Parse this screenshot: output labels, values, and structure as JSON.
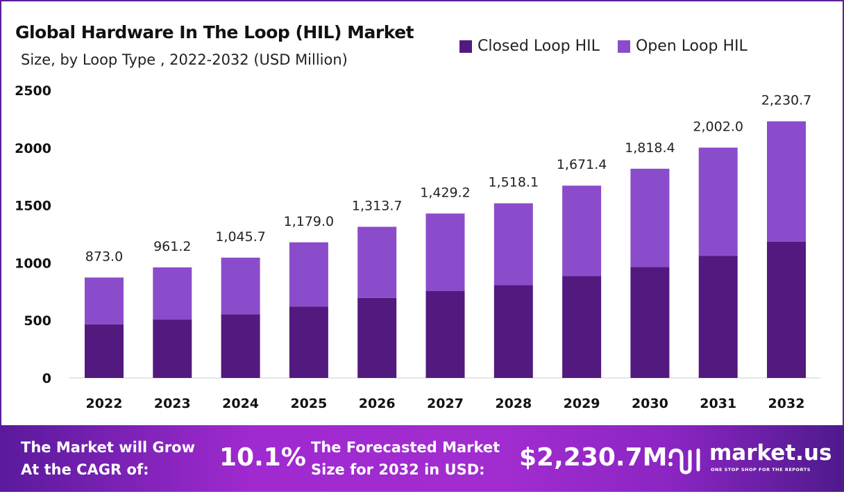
{
  "title": "Global Hardware In The Loop (HIL) Market",
  "subtitle": "Size, by Loop Type , 2022-2032 (USD Million)",
  "colors": {
    "closed": "#52197f",
    "open": "#8b4ccb",
    "border": "#5b1f9a"
  },
  "chart_data": {
    "type": "bar",
    "stacked": true,
    "title": "Global Hardware In The Loop (HIL) Market",
    "subtitle": "Size, by Loop Type , 2022-2032 (USD Million)",
    "categories": [
      "2022",
      "2023",
      "2024",
      "2025",
      "2026",
      "2027",
      "2028",
      "2029",
      "2030",
      "2031",
      "2032"
    ],
    "series": [
      {
        "name": "Closed Loop HIL",
        "values": [
          466,
          507,
          554,
          621,
          696,
          757,
          806,
          885,
          965,
          1062,
          1184
        ]
      },
      {
        "name": "Open Loop HIL",
        "values": [
          407,
          454.2,
          491.7,
          558,
          617.7,
          672.2,
          712.1,
          786.4,
          853.4,
          940,
          1046.7
        ]
      }
    ],
    "totals": [
      "873.0",
      "961.2",
      "1,045.7",
      "1,179.0",
      "1,313.7",
      "1,429.2",
      "1,518.1",
      "1,671.4",
      "1,818.4",
      "2,002.0",
      "2,230.7"
    ],
    "totals_values": [
      873.0,
      961.2,
      1045.7,
      1179.0,
      1313.7,
      1429.2,
      1518.1,
      1671.4,
      1818.4,
      2002.0,
      2230.7
    ],
    "yticks": [
      "0",
      "500",
      "1000",
      "1500",
      "2000",
      "2500"
    ],
    "ylim": [
      0,
      2500
    ],
    "grid": false,
    "legend": "top-right"
  },
  "banner": {
    "cagr_label_1": "The Market will Grow",
    "cagr_label_2": "At the CAGR of:",
    "cagr_value": "10.1%",
    "forecast_label_1": "The Forecasted Market",
    "forecast_label_2": "Size for 2032 in USD:",
    "forecast_value": "$2,230.7M",
    "logo_text": "market.us",
    "logo_tagline": "ONE STOP SHOP FOR THE REPORTS"
  }
}
